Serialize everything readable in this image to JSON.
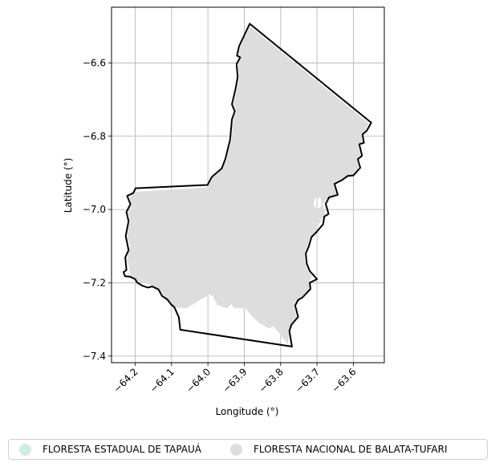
{
  "chart_data": {
    "type": "map",
    "title": "",
    "xlabel": "Longitude (°)",
    "ylabel": "Latitude (°)",
    "xlim": [
      -64.265,
      -63.515
    ],
    "ylim": [
      -7.418,
      -6.448
    ],
    "xticks": [
      {
        "value": -64.2,
        "label": "−64.2"
      },
      {
        "value": -64.1,
        "label": "−64.1"
      },
      {
        "value": -64.0,
        "label": "−64.0"
      },
      {
        "value": -63.9,
        "label": "−63.9"
      },
      {
        "value": -63.8,
        "label": "−63.8"
      },
      {
        "value": -63.7,
        "label": "−63.7"
      },
      {
        "value": -63.6,
        "label": "−63.6"
      }
    ],
    "yticks": [
      {
        "value": -6.6,
        "label": "−6.6"
      },
      {
        "value": -6.8,
        "label": "−6.8"
      },
      {
        "value": -7.0,
        "label": "−7.0"
      },
      {
        "value": -7.2,
        "label": "−7.2"
      },
      {
        "value": -7.4,
        "label": "−7.4"
      }
    ],
    "grid": true,
    "legend_position": "bottom",
    "series": [
      {
        "name": "FLORESTA ESTADUAL DE TAPAUÁ",
        "color": "#cdeee0",
        "polygon": [],
        "outline": [
          [
            -64.232,
            -7.171
          ],
          [
            -64.224,
            -7.165
          ],
          [
            -64.227,
            -7.13
          ],
          [
            -64.218,
            -7.111
          ],
          [
            -64.226,
            -7.072
          ],
          [
            -64.218,
            -7.032
          ],
          [
            -64.224,
            -7.007
          ],
          [
            -64.213,
            -6.985
          ],
          [
            -64.222,
            -6.963
          ],
          [
            -64.205,
            -6.955
          ],
          [
            -64.199,
            -6.942
          ],
          [
            -64.001,
            -6.933
          ],
          [
            -63.989,
            -6.911
          ],
          [
            -63.962,
            -6.888
          ],
          [
            -63.952,
            -6.862
          ],
          [
            -63.939,
            -6.81
          ],
          [
            -63.934,
            -6.754
          ],
          [
            -63.926,
            -6.732
          ],
          [
            -63.934,
            -6.713
          ],
          [
            -63.924,
            -6.671
          ],
          [
            -63.918,
            -6.638
          ],
          [
            -63.921,
            -6.603
          ],
          [
            -63.911,
            -6.585
          ],
          [
            -63.92,
            -6.58
          ],
          [
            -63.914,
            -6.554
          ],
          [
            -63.885,
            -6.493
          ],
          [
            -63.551,
            -6.763
          ],
          [
            -63.563,
            -6.785
          ],
          [
            -63.575,
            -6.795
          ],
          [
            -63.571,
            -6.818
          ],
          [
            -63.584,
            -6.822
          ],
          [
            -63.576,
            -6.853
          ],
          [
            -63.588,
            -6.863
          ],
          [
            -63.581,
            -6.886
          ],
          [
            -63.6,
            -6.907
          ],
          [
            -63.615,
            -6.908
          ],
          [
            -63.632,
            -6.92
          ],
          [
            -63.652,
            -6.93
          ],
          [
            -63.643,
            -6.96
          ],
          [
            -63.667,
            -6.967
          ],
          [
            -63.676,
            -6.985
          ],
          [
            -63.668,
            -7.012
          ],
          [
            -63.68,
            -7.019
          ],
          [
            -63.683,
            -7.04
          ],
          [
            -63.7,
            -7.06
          ],
          [
            -63.715,
            -7.075
          ],
          [
            -63.723,
            -7.102
          ],
          [
            -63.731,
            -7.12
          ],
          [
            -63.728,
            -7.148
          ],
          [
            -63.72,
            -7.168
          ],
          [
            -63.709,
            -7.18
          ],
          [
            -63.7,
            -7.19
          ],
          [
            -63.72,
            -7.2
          ],
          [
            -63.718,
            -7.217
          ],
          [
            -63.74,
            -7.24
          ],
          [
            -63.752,
            -7.247
          ],
          [
            -63.76,
            -7.262
          ],
          [
            -63.752,
            -7.293
          ],
          [
            -63.77,
            -7.314
          ],
          [
            -63.776,
            -7.331
          ],
          [
            -63.769,
            -7.374
          ],
          [
            -64.076,
            -7.328
          ],
          [
            -64.08,
            -7.294
          ],
          [
            -64.092,
            -7.267
          ],
          [
            -64.102,
            -7.258
          ],
          [
            -64.112,
            -7.245
          ],
          [
            -64.126,
            -7.236
          ],
          [
            -64.136,
            -7.218
          ],
          [
            -64.153,
            -7.21
          ],
          [
            -64.165,
            -7.213
          ],
          [
            -64.18,
            -7.208
          ],
          [
            -64.194,
            -7.2
          ],
          [
            -64.2,
            -7.19
          ],
          [
            -64.215,
            -7.183
          ],
          [
            -64.228,
            -7.182
          ]
        ]
      },
      {
        "name": "FLORESTA NACIONAL DE BALATA-TUFARI",
        "color": "#dddddd",
        "polygon": [
          [
            -64.21,
            -6.952
          ],
          [
            -64.001,
            -6.94
          ],
          [
            -63.985,
            -6.912
          ],
          [
            -63.96,
            -6.89
          ],
          [
            -63.948,
            -6.862
          ],
          [
            -63.935,
            -6.81
          ],
          [
            -63.93,
            -6.754
          ],
          [
            -63.922,
            -6.732
          ],
          [
            -63.93,
            -6.713
          ],
          [
            -63.92,
            -6.671
          ],
          [
            -63.914,
            -6.638
          ],
          [
            -63.917,
            -6.603
          ],
          [
            -63.907,
            -6.585
          ],
          [
            -63.916,
            -6.58
          ],
          [
            -63.91,
            -6.554
          ],
          [
            -63.884,
            -6.5
          ],
          [
            -63.558,
            -6.765
          ],
          [
            -63.568,
            -6.787
          ],
          [
            -63.579,
            -6.797
          ],
          [
            -63.575,
            -6.818
          ],
          [
            -63.588,
            -6.823
          ],
          [
            -63.58,
            -6.853
          ],
          [
            -63.592,
            -6.863
          ],
          [
            -63.585,
            -6.886
          ],
          [
            -63.602,
            -6.911
          ],
          [
            -63.617,
            -6.913
          ],
          [
            -63.634,
            -6.924
          ],
          [
            -63.654,
            -6.934
          ],
          [
            -63.645,
            -6.962
          ],
          [
            -63.67,
            -6.968
          ],
          [
            -63.684,
            -6.985
          ],
          [
            -63.676,
            -7.012
          ],
          [
            -63.687,
            -7.025
          ],
          [
            -63.705,
            -7.06
          ],
          [
            -63.72,
            -7.078
          ],
          [
            -63.727,
            -7.102
          ],
          [
            -63.735,
            -7.12
          ],
          [
            -63.732,
            -7.148
          ],
          [
            -63.724,
            -7.168
          ],
          [
            -63.714,
            -7.182
          ],
          [
            -63.722,
            -7.202
          ],
          [
            -63.722,
            -7.218
          ],
          [
            -63.744,
            -7.242
          ],
          [
            -63.756,
            -7.25
          ],
          [
            -63.764,
            -7.262
          ],
          [
            -63.756,
            -7.293
          ],
          [
            -63.772,
            -7.314
          ],
          [
            -63.776,
            -7.34
          ],
          [
            -63.78,
            -7.368
          ],
          [
            -63.81,
            -7.33
          ],
          [
            -63.82,
            -7.318
          ],
          [
            -63.832,
            -7.325
          ],
          [
            -63.857,
            -7.311
          ],
          [
            -63.882,
            -7.288
          ],
          [
            -63.896,
            -7.27
          ],
          [
            -63.93,
            -7.268
          ],
          [
            -63.935,
            -7.258
          ],
          [
            -63.948,
            -7.27
          ],
          [
            -63.975,
            -7.26
          ],
          [
            -63.985,
            -7.238
          ],
          [
            -63.995,
            -7.232
          ],
          [
            -64.015,
            -7.243
          ],
          [
            -64.04,
            -7.258
          ],
          [
            -64.06,
            -7.27
          ],
          [
            -64.08,
            -7.268
          ],
          [
            -64.095,
            -7.268
          ],
          [
            -64.115,
            -7.24
          ],
          [
            -64.135,
            -7.22
          ],
          [
            -64.16,
            -7.205
          ],
          [
            -64.19,
            -7.198
          ],
          [
            -64.212,
            -7.185
          ],
          [
            -64.222,
            -7.13
          ],
          [
            -64.214,
            -7.1
          ],
          [
            -64.222,
            -7.072
          ],
          [
            -64.214,
            -7.032
          ],
          [
            -64.22,
            -7.007
          ],
          [
            -64.21,
            -6.985
          ],
          [
            -64.216,
            -6.963
          ]
        ],
        "holes": [
          [
            [
              -63.705,
              -6.968
            ],
            [
              -63.69,
              -6.968
            ],
            [
              -63.688,
              -6.99
            ],
            [
              -63.7,
              -7.0
            ],
            [
              -63.71,
              -6.985
            ]
          ]
        ]
      }
    ]
  }
}
